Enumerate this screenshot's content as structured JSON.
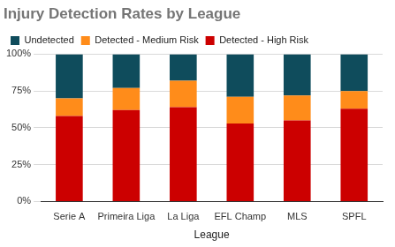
{
  "chart_data": {
    "type": "bar",
    "title": "Injury Detection Rates by League",
    "x_label": "League",
    "categories": [
      "Serie A",
      "Primeira Liga",
      "La Liga",
      "EFL Champ",
      "MLS",
      "SPFL"
    ],
    "series": [
      {
        "name": "Detected - High Risk",
        "color": "#cc0000",
        "values": [
          58,
          62,
          64,
          53,
          55,
          63
        ]
      },
      {
        "name": "Detected - Medium Risk",
        "color": "#ff8c1a",
        "values": [
          12,
          15,
          18,
          18,
          17,
          12
        ]
      },
      {
        "name": "Undetected",
        "color": "#0f4c5c",
        "values": [
          30,
          23,
          18,
          29,
          28,
          25
        ]
      }
    ],
    "ylim": [
      0,
      100
    ],
    "yticks": [
      {
        "value": 0,
        "label": "0%"
      },
      {
        "value": 25,
        "label": "25%"
      },
      {
        "value": 50,
        "label": "50%"
      },
      {
        "value": 75,
        "label": "75%"
      },
      {
        "value": 100,
        "label": "100%"
      }
    ],
    "stacked": true,
    "grid": true,
    "legend": "top-left"
  }
}
